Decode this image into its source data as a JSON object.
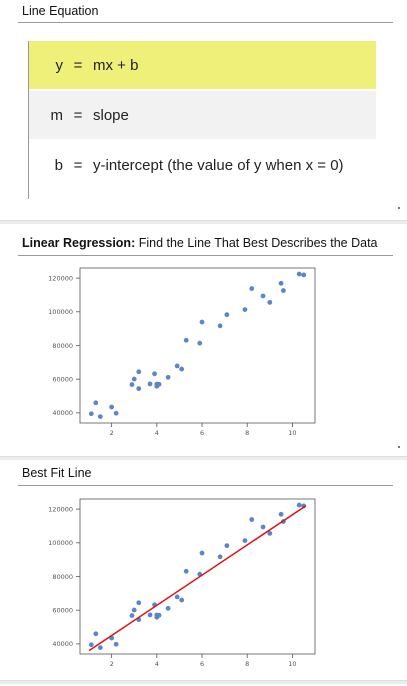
{
  "equation_section": {
    "title": "Line Equation",
    "rows": [
      {
        "symbol": "y",
        "equals": "=",
        "text": "mx + b"
      },
      {
        "symbol": "m",
        "equals": "=",
        "text": "slope"
      },
      {
        "symbol": "b",
        "equals": "=",
        "text": "y-intercept (the value of y when x = 0)"
      }
    ],
    "highlight_color": "#eef07a"
  },
  "regression_section": {
    "title_bold": "Linear Regression:",
    "title_rest": " Find the Line That Best Describes the Data"
  },
  "bestfit_section": {
    "title": "Best Fit Line"
  },
  "chart_data": [
    {
      "type": "scatter",
      "title": "",
      "xlabel": "",
      "ylabel": "",
      "xlim": [
        0.6,
        11
      ],
      "ylim": [
        34000,
        126000
      ],
      "x_ticks": [
        2,
        4,
        6,
        8,
        10
      ],
      "y_ticks": [
        40000,
        60000,
        80000,
        100000,
        120000
      ],
      "x_tick_labels": [
        "2",
        "4",
        "6",
        "8",
        "10"
      ],
      "y_tick_labels": [
        "40000",
        "60000",
        "80000",
        "100000",
        "120000"
      ],
      "grid": false,
      "point_color": "#5b86c9",
      "points": [
        [
          1.1,
          39500
        ],
        [
          1.3,
          46000
        ],
        [
          1.5,
          37800
        ],
        [
          2.0,
          43500
        ],
        [
          2.2,
          39800
        ],
        [
          2.9,
          56800
        ],
        [
          3.0,
          60100
        ],
        [
          3.2,
          54400
        ],
        [
          3.2,
          64400
        ],
        [
          3.7,
          57200
        ],
        [
          3.9,
          63200
        ],
        [
          4.0,
          55800
        ],
        [
          4.0,
          57100
        ],
        [
          4.1,
          57000
        ],
        [
          4.5,
          61100
        ],
        [
          4.9,
          67900
        ],
        [
          5.1,
          66000
        ],
        [
          5.3,
          83100
        ],
        [
          5.9,
          81400
        ],
        [
          6.0,
          93900
        ],
        [
          6.8,
          91700
        ],
        [
          7.1,
          98300
        ],
        [
          7.9,
          101300
        ],
        [
          8.2,
          113800
        ],
        [
          8.7,
          109400
        ],
        [
          9.0,
          105600
        ],
        [
          9.5,
          116900
        ],
        [
          9.6,
          112600
        ],
        [
          10.3,
          122400
        ],
        [
          10.5,
          121900
        ]
      ]
    },
    {
      "type": "scatter",
      "title": "",
      "xlabel": "",
      "ylabel": "",
      "xlim": [
        0.6,
        11
      ],
      "ylim": [
        34000,
        126000
      ],
      "x_ticks": [
        2,
        4,
        6,
        8,
        10
      ],
      "y_ticks": [
        40000,
        60000,
        80000,
        100000,
        120000
      ],
      "x_tick_labels": [
        "2",
        "4",
        "6",
        "8",
        "10"
      ],
      "y_tick_labels": [
        "40000",
        "60000",
        "80000",
        "100000",
        "120000"
      ],
      "grid": false,
      "point_color": "#5b86c9",
      "fit_line": {
        "color": "#dd1111",
        "x": [
          1.0,
          10.6
        ],
        "y": [
          36000,
          122000
        ]
      },
      "points": [
        [
          1.1,
          39500
        ],
        [
          1.3,
          46000
        ],
        [
          1.5,
          37800
        ],
        [
          2.0,
          43500
        ],
        [
          2.2,
          39800
        ],
        [
          2.9,
          56800
        ],
        [
          3.0,
          60100
        ],
        [
          3.2,
          54400
        ],
        [
          3.2,
          64400
        ],
        [
          3.7,
          57200
        ],
        [
          3.9,
          63200
        ],
        [
          4.0,
          55800
        ],
        [
          4.0,
          57100
        ],
        [
          4.1,
          57000
        ],
        [
          4.5,
          61100
        ],
        [
          4.9,
          67900
        ],
        [
          5.1,
          66000
        ],
        [
          5.3,
          83100
        ],
        [
          5.9,
          81400
        ],
        [
          6.0,
          93900
        ],
        [
          6.8,
          91700
        ],
        [
          7.1,
          98300
        ],
        [
          7.9,
          101300
        ],
        [
          8.2,
          113800
        ],
        [
          8.7,
          109400
        ],
        [
          9.0,
          105600
        ],
        [
          9.5,
          116900
        ],
        [
          9.6,
          112600
        ],
        [
          10.3,
          122400
        ],
        [
          10.5,
          121900
        ]
      ]
    }
  ]
}
